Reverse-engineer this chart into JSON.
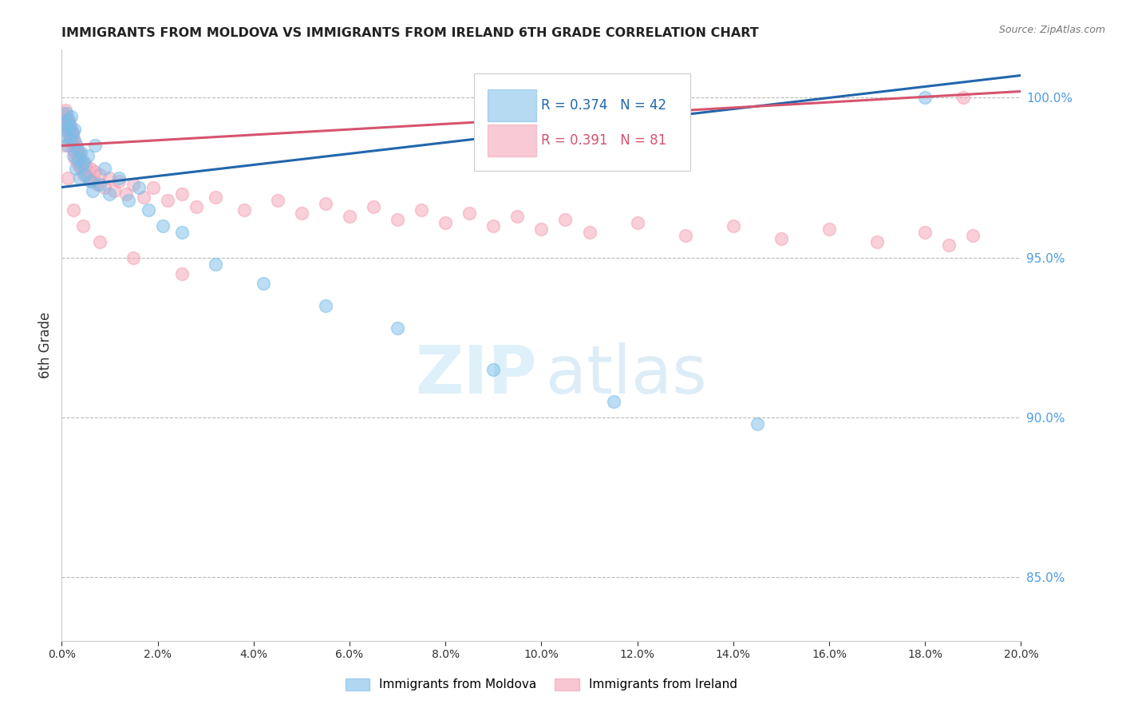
{
  "title": "IMMIGRANTS FROM MOLDOVA VS IMMIGRANTS FROM IRELAND 6TH GRADE CORRELATION CHART",
  "source": "Source: ZipAtlas.com",
  "ylabel_left": "6th Grade",
  "xlim": [
    0.0,
    20.0
  ],
  "ylim": [
    83.0,
    101.5
  ],
  "right_yticks": [
    85.0,
    90.0,
    95.0,
    100.0
  ],
  "moldova_R": 0.374,
  "moldova_N": 42,
  "ireland_R": 0.391,
  "ireland_N": 81,
  "moldova_color": "#7abde8",
  "ireland_color": "#f4a0b5",
  "moldova_line_color": "#2166ac",
  "ireland_line_color": "#d6546e",
  "legend_moldova": "Immigrants from Moldova",
  "legend_ireland": "Immigrants from Ireland",
  "moldova_x": [
    0.05,
    0.07,
    0.09,
    0.1,
    0.12,
    0.14,
    0.16,
    0.18,
    0.2,
    0.22,
    0.24,
    0.26,
    0.28,
    0.3,
    0.32,
    0.35,
    0.38,
    0.4,
    0.43,
    0.46,
    0.5,
    0.55,
    0.6,
    0.65,
    0.7,
    0.8,
    0.9,
    1.0,
    1.2,
    1.4,
    1.6,
    1.8,
    2.1,
    2.5,
    3.2,
    4.2,
    5.5,
    7.0,
    9.0,
    11.5,
    14.5,
    18.0
  ],
  "moldova_y": [
    99.2,
    98.8,
    99.5,
    99.0,
    98.5,
    99.3,
    99.1,
    98.7,
    99.4,
    98.9,
    98.2,
    99.0,
    98.6,
    97.8,
    98.4,
    98.1,
    97.5,
    98.3,
    97.9,
    98.0,
    97.6,
    98.2,
    97.4,
    97.1,
    98.5,
    97.3,
    97.8,
    97.0,
    97.5,
    96.8,
    97.2,
    96.5,
    96.0,
    95.8,
    94.8,
    94.2,
    93.5,
    92.8,
    91.5,
    90.5,
    89.8,
    100.0
  ],
  "ireland_x": [
    0.03,
    0.05,
    0.07,
    0.08,
    0.09,
    0.1,
    0.11,
    0.13,
    0.14,
    0.15,
    0.16,
    0.17,
    0.18,
    0.19,
    0.2,
    0.21,
    0.22,
    0.23,
    0.24,
    0.25,
    0.26,
    0.28,
    0.3,
    0.32,
    0.34,
    0.36,
    0.38,
    0.4,
    0.43,
    0.46,
    0.5,
    0.55,
    0.6,
    0.65,
    0.7,
    0.75,
    0.8,
    0.9,
    1.0,
    1.1,
    1.2,
    1.35,
    1.5,
    1.7,
    1.9,
    2.2,
    2.5,
    2.8,
    3.2,
    3.8,
    4.5,
    5.0,
    5.5,
    6.0,
    6.5,
    7.0,
    7.5,
    8.0,
    8.5,
    9.0,
    9.5,
    10.0,
    10.5,
    11.0,
    12.0,
    13.0,
    14.0,
    15.0,
    16.0,
    17.0,
    18.0,
    18.5,
    19.0,
    0.06,
    0.12,
    0.25,
    0.45,
    0.8,
    1.5,
    2.5,
    18.8
  ],
  "ireland_y": [
    99.5,
    99.3,
    99.6,
    99.2,
    99.4,
    99.1,
    99.3,
    98.9,
    99.2,
    99.0,
    98.8,
    99.1,
    98.7,
    99.0,
    98.6,
    98.9,
    98.5,
    98.8,
    98.4,
    98.7,
    98.3,
    98.1,
    98.5,
    98.0,
    98.3,
    97.9,
    98.2,
    97.8,
    98.0,
    97.6,
    97.9,
    97.5,
    97.8,
    97.4,
    97.7,
    97.3,
    97.6,
    97.2,
    97.5,
    97.1,
    97.4,
    97.0,
    97.3,
    96.9,
    97.2,
    96.8,
    97.0,
    96.6,
    96.9,
    96.5,
    96.8,
    96.4,
    96.7,
    96.3,
    96.6,
    96.2,
    96.5,
    96.1,
    96.4,
    96.0,
    96.3,
    95.9,
    96.2,
    95.8,
    96.1,
    95.7,
    96.0,
    95.6,
    95.9,
    95.5,
    95.8,
    95.4,
    95.7,
    98.5,
    97.5,
    96.5,
    96.0,
    95.5,
    95.0,
    94.5,
    100.0
  ],
  "moldova_trend_x": [
    0.0,
    20.0
  ],
  "moldova_trend_y": [
    97.2,
    100.7
  ],
  "ireland_trend_x": [
    0.0,
    20.0
  ],
  "ireland_trend_y": [
    98.5,
    100.2
  ]
}
